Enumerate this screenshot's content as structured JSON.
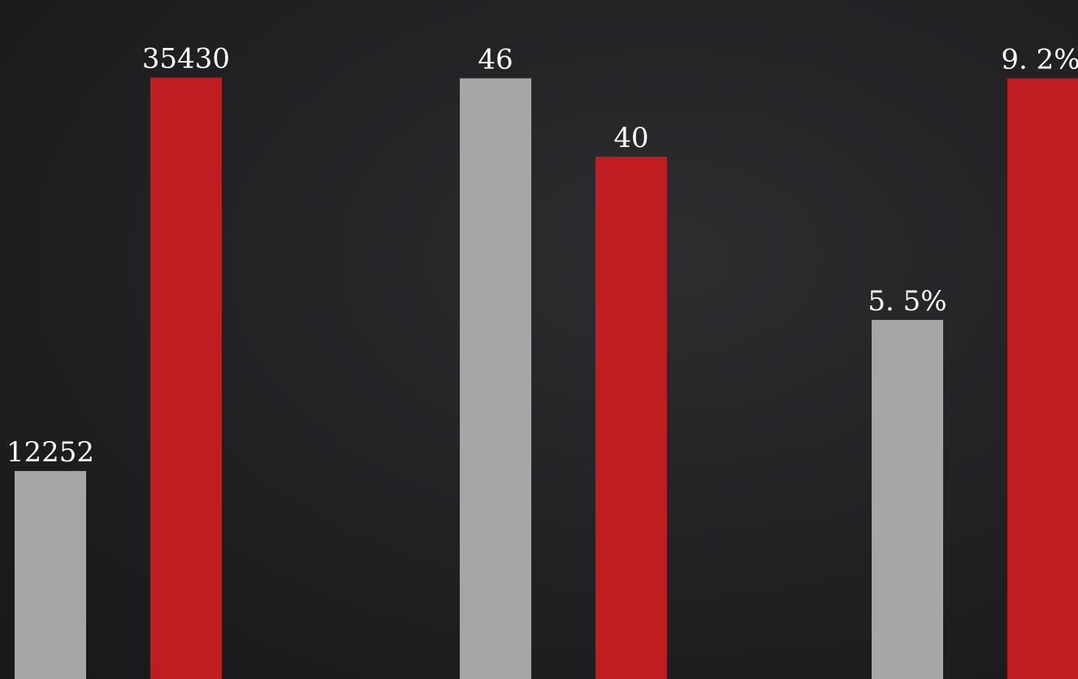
{
  "chart_data": [
    {
      "type": "bar",
      "categories": [
        "",
        ""
      ],
      "values": [
        12252,
        35430
      ],
      "labels": [
        "12252",
        "35430"
      ],
      "colors": [
        "#a6a6a6",
        "#c01d22"
      ],
      "ylim": [
        0,
        40000
      ]
    },
    {
      "type": "bar",
      "categories": [
        "",
        ""
      ],
      "values": [
        46,
        40
      ],
      "labels": [
        "46",
        "40"
      ],
      "colors": [
        "#a6a6a6",
        "#c01d22"
      ],
      "ylim": [
        0,
        52
      ]
    },
    {
      "type": "bar",
      "categories": [
        "",
        ""
      ],
      "values": [
        5.5,
        9.2
      ],
      "labels": [
        "5. 5%",
        "9. 2%"
      ],
      "colors": [
        "#a6a6a6",
        "#c01d22"
      ],
      "ylim": [
        0,
        10.4
      ]
    }
  ]
}
